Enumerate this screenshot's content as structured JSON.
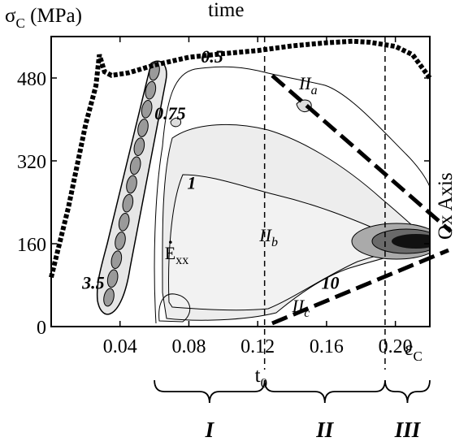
{
  "chart_data": {
    "type": "contour",
    "x_axis": {
      "label": "ε",
      "label_sub": "C",
      "range": [
        0,
        0.22
      ],
      "ticks": [
        0.04,
        0.08,
        0.12,
        0.16,
        0.2
      ],
      "tick_labels": [
        "0.04",
        "0.08",
        "0.12",
        "0.16",
        "0.20"
      ]
    },
    "y_axis": {
      "label": "σ",
      "label_sub": "C",
      "label_unit": " (MPa)",
      "range": [
        0,
        560
      ],
      "ticks": [
        0,
        160,
        320,
        480
      ],
      "tick_labels": [
        "0",
        "160",
        "320",
        "480"
      ]
    },
    "top_label": "time",
    "right_label": "Ox Axis",
    "stress_strain_curve": [
      [
        0.0,
        95
      ],
      [
        0.01,
        230
      ],
      [
        0.02,
        390
      ],
      [
        0.026,
        465
      ],
      [
        0.028,
        525
      ],
      [
        0.031,
        492
      ],
      [
        0.035,
        485
      ],
      [
        0.045,
        490
      ],
      [
        0.06,
        505
      ],
      [
        0.08,
        520
      ],
      [
        0.1,
        527
      ],
      [
        0.12,
        533
      ],
      [
        0.14,
        542
      ],
      [
        0.16,
        548
      ],
      [
        0.175,
        551
      ],
      [
        0.185,
        549
      ],
      [
        0.2,
        541
      ],
      [
        0.21,
        525
      ],
      [
        0.22,
        480
      ]
    ],
    "contour_levels": [
      {
        "label": "0.5",
        "x": 0.087,
        "y": 510
      },
      {
        "label": "0.75",
        "x": 0.06,
        "y": 400
      },
      {
        "label": "1",
        "x": 0.079,
        "y": 266
      },
      {
        "label": "3.5",
        "x": 0.018,
        "y": 73
      },
      {
        "label": "10",
        "x": 0.157,
        "y": 73
      }
    ],
    "strain_rate_label": {
      "text": "E",
      "sub": "xx",
      "x": 0.066,
      "y": 130
    },
    "regions": [
      {
        "label": "II",
        "sub": "a",
        "x": 0.144,
        "y": 458
      },
      {
        "label": "II",
        "sub": "b",
        "x": 0.121,
        "y": 165
      },
      {
        "label": "II",
        "sub": "c",
        "x": 0.14,
        "y": 28
      }
    ],
    "t0": {
      "label": "t",
      "sub": "0",
      "x": 0.124
    },
    "phase_boundary_2": 0.194,
    "phases": [
      "I",
      "II",
      "III"
    ]
  }
}
